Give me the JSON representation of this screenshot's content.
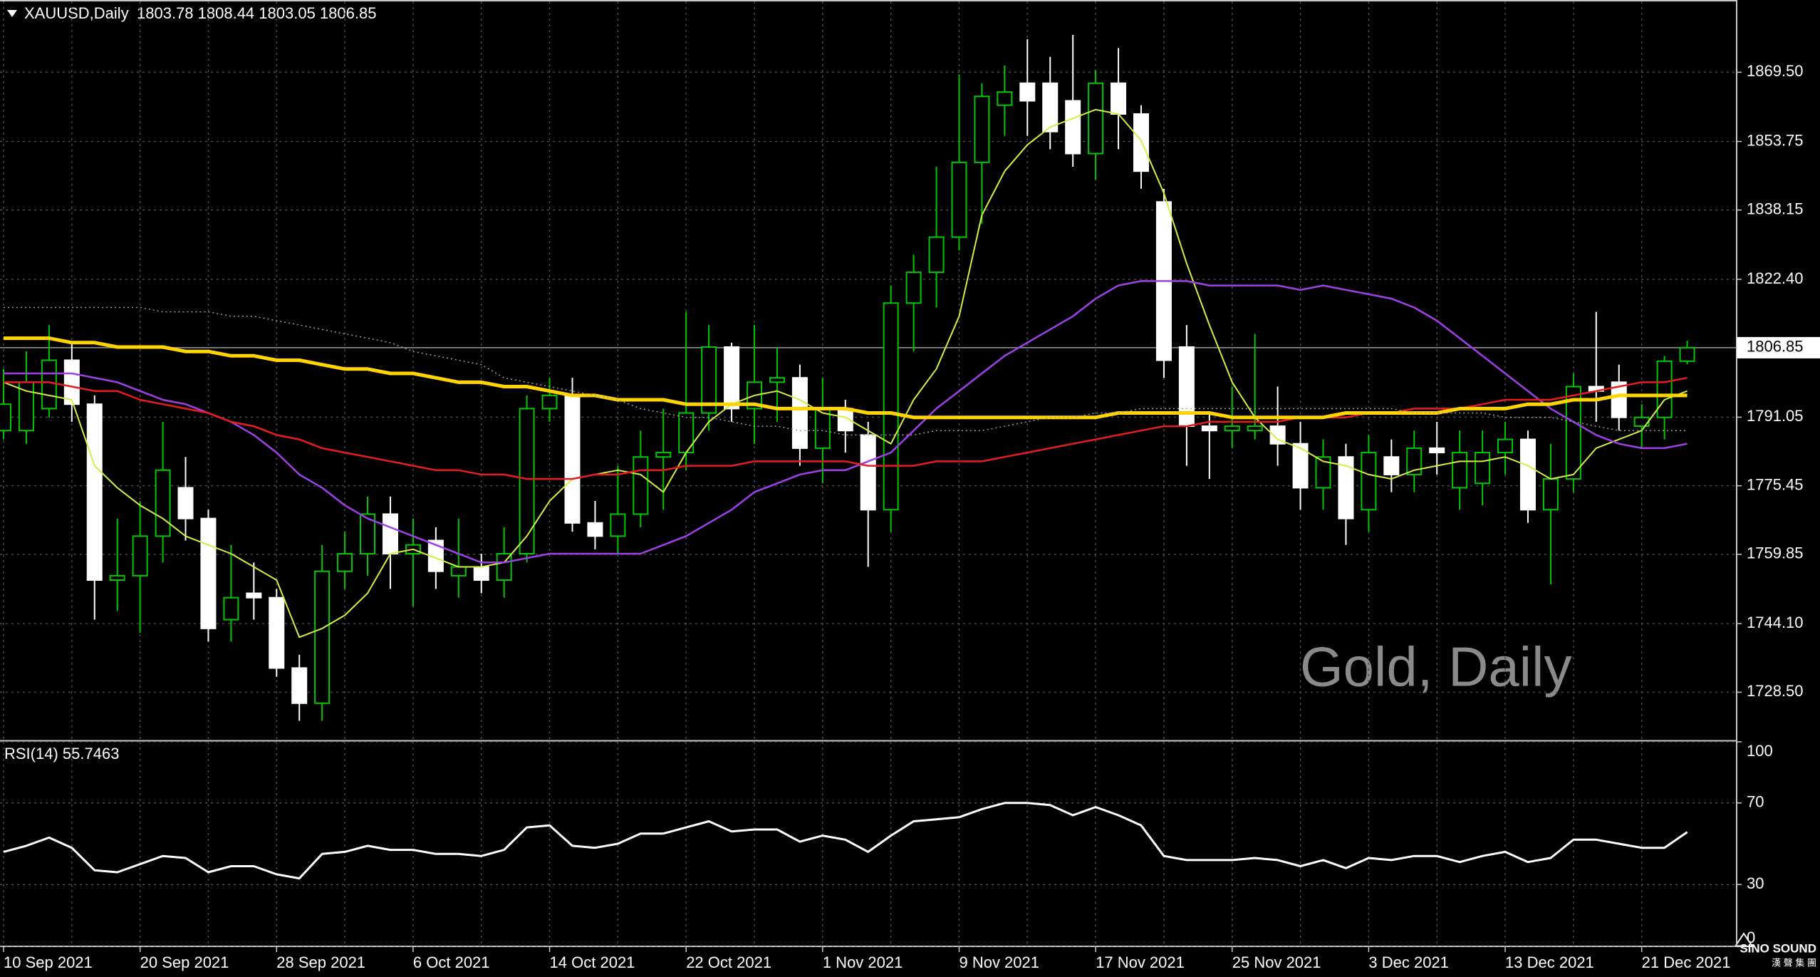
{
  "chart_data": [
    {
      "type": "candlestick",
      "title": "XAUUSD,Daily",
      "subtitle": "1803.78 1808.44 1803.05 1806.85",
      "watermark": "Gold, Daily",
      "categories": [
        "10 Sep 2021",
        null,
        null,
        null,
        null,
        null,
        "20 Sep 2021",
        null,
        null,
        null,
        null,
        null,
        "28 Sep 2021",
        null,
        null,
        null,
        null,
        null,
        "6 Oct 2021",
        null,
        null,
        null,
        null,
        null,
        "14 Oct 2021",
        null,
        null,
        null,
        null,
        null,
        "22 Oct 2021",
        null,
        null,
        null,
        null,
        null,
        "1 Nov 2021",
        null,
        null,
        null,
        null,
        null,
        "9 Nov 2021",
        null,
        null,
        null,
        null,
        null,
        "17 Nov 2021",
        null,
        null,
        null,
        null,
        null,
        "25 Nov 2021",
        null,
        null,
        null,
        null,
        null,
        "3 Dec 2021",
        null,
        null,
        null,
        null,
        null,
        "13 Dec 2021",
        null,
        null,
        null,
        null,
        null,
        "21 Dec 2021",
        null,
        null
      ],
      "open": [
        1788,
        1788,
        1793,
        1804,
        1794,
        1754,
        1755,
        1764,
        1775,
        1768,
        1745,
        1751,
        1750,
        1734,
        1726,
        1756,
        1760,
        1769,
        1760,
        1763,
        1755,
        1757,
        1754,
        1760,
        1793,
        1796,
        1767,
        1764,
        1769,
        1782,
        1783,
        1792,
        1807,
        1793,
        1799,
        1800,
        1784,
        1793,
        1787,
        1770,
        1817,
        1824,
        1832,
        1849,
        1862,
        1867,
        1867,
        1863,
        1851,
        1867,
        1860,
        1840,
        1807,
        1789,
        1788,
        1788,
        1789,
        1785,
        1775,
        1782,
        1770,
        1782,
        1778,
        1784,
        1775,
        1776,
        1783,
        1786,
        1770,
        1777,
        1798,
        1799,
        1789,
        1791,
        1803.78
      ],
      "high": [
        1802,
        1806,
        1812,
        1808,
        1796,
        1768,
        1772,
        1790,
        1782,
        1770,
        1762,
        1758,
        1752,
        1737,
        1762,
        1765,
        1773,
        1773,
        1768,
        1766,
        1768,
        1760,
        1766,
        1796,
        1800,
        1800,
        1772,
        1780,
        1788,
        1793,
        1815,
        1812,
        1808,
        1812,
        1807,
        1803,
        1800,
        1795,
        1790,
        1821,
        1828,
        1848,
        1869,
        1867,
        1871,
        1877,
        1873,
        1878,
        1870,
        1875,
        1862,
        1843,
        1812,
        1792,
        1798,
        1810,
        1798,
        1790,
        1786,
        1785,
        1787,
        1786,
        1788,
        1790,
        1788,
        1788,
        1790,
        1788,
        1785,
        1801,
        1815,
        1803,
        1794,
        1805,
        1808.44
      ],
      "low": [
        1786,
        1785,
        1791,
        1790,
        1745,
        1747,
        1742,
        1758,
        1763,
        1740,
        1740,
        1745,
        1732,
        1722,
        1722,
        1752,
        1755,
        1752,
        1748,
        1752,
        1750,
        1751,
        1750,
        1758,
        1790,
        1765,
        1761,
        1760,
        1766,
        1770,
        1779,
        1788,
        1790,
        1785,
        1790,
        1780,
        1776,
        1783,
        1757,
        1765,
        1806,
        1816,
        1829,
        1835,
        1855,
        1855,
        1852,
        1848,
        1845,
        1852,
        1843,
        1800,
        1780,
        1777,
        1784,
        1786,
        1780,
        1770,
        1770,
        1762,
        1765,
        1774,
        1774,
        1778,
        1770,
        1771,
        1778,
        1767,
        1753,
        1774,
        1790,
        1788,
        1784,
        1786,
        1803.05
      ],
      "close": [
        1794,
        1799,
        1804,
        1794,
        1754,
        1755,
        1764,
        1779,
        1768,
        1743,
        1750,
        1750,
        1734,
        1726,
        1756,
        1760,
        1769,
        1760,
        1762,
        1756,
        1757,
        1754,
        1760,
        1793,
        1796,
        1767,
        1764,
        1769,
        1782,
        1783,
        1792,
        1807,
        1793,
        1799,
        1800,
        1784,
        1793,
        1788,
        1770,
        1817,
        1824,
        1832,
        1849,
        1864,
        1865,
        1863,
        1856,
        1851,
        1867,
        1860,
        1847,
        1804,
        1789,
        1788,
        1789,
        1789,
        1785,
        1775,
        1782,
        1768,
        1783,
        1778,
        1784,
        1783,
        1783,
        1783,
        1786,
        1770,
        1777,
        1798,
        1797,
        1791,
        1791,
        1803.78,
        1806.85
      ],
      "up_color": "#00c800",
      "down_color": "#ffffff",
      "overlays": [
        {
          "color": "#d4ee44",
          "values": [
            1799,
            1797,
            1796,
            1795,
            1780,
            1775,
            1771,
            1768,
            1764,
            1762,
            1760,
            1757,
            1754,
            1741,
            1743,
            1746,
            1751,
            1760,
            1761,
            1759,
            1757,
            1757,
            1758,
            1764,
            1772,
            1777,
            1778,
            1779,
            1778,
            1774,
            1783,
            1790,
            1794,
            1796,
            1797,
            1795,
            1792,
            1791,
            1788,
            1785,
            1795,
            1802,
            1814,
            1837,
            1847,
            1853,
            1857,
            1859,
            1861,
            1860,
            1854,
            1842,
            1826,
            1812,
            1799,
            1791,
            1786,
            1784,
            1781,
            1780,
            1778,
            1777,
            1779,
            1780,
            1781,
            1781,
            1782,
            1780,
            1777,
            1778,
            1784,
            1786,
            1788,
            1795,
            1797
          ]
        },
        {
          "color": "#a040e8",
          "values": [
            1801,
            1801,
            1801,
            1801,
            1800,
            1799,
            1797,
            1795,
            1794,
            1792,
            1790,
            1787,
            1783,
            1778,
            1775,
            1771,
            1768,
            1766,
            1764,
            1762,
            1760,
            1758,
            1758,
            1759,
            1760,
            1760,
            1760,
            1760,
            1760,
            1762,
            1764,
            1767,
            1770,
            1774,
            1776,
            1778,
            1779,
            1779,
            1781,
            1783,
            1788,
            1793,
            1797,
            1801,
            1805,
            1808,
            1811,
            1814,
            1818,
            1821,
            1822,
            1822,
            1822,
            1821,
            1821,
            1821,
            1821,
            1820,
            1821,
            1820,
            1819,
            1818,
            1816,
            1813,
            1809,
            1805,
            1801,
            1797,
            1793,
            1790,
            1787,
            1785,
            1784,
            1784,
            1785
          ]
        },
        {
          "color": "#e81c1c",
          "values": [
            1799,
            1799,
            1799,
            1798,
            1797,
            1797,
            1795,
            1794,
            1793,
            1792,
            1790,
            1789,
            1787,
            1786,
            1784,
            1783,
            1782,
            1781,
            1780,
            1779,
            1779,
            1778,
            1778,
            1777,
            1777,
            1777,
            1778,
            1778,
            1779,
            1779,
            1780,
            1780,
            1780,
            1781,
            1781,
            1781,
            1781,
            1781,
            1780,
            1780,
            1780,
            1781,
            1781,
            1781,
            1782,
            1783,
            1784,
            1785,
            1786,
            1787,
            1788,
            1789,
            1789,
            1790,
            1790,
            1790,
            1790,
            1791,
            1791,
            1791,
            1792,
            1792,
            1793,
            1793,
            1793,
            1794,
            1795,
            1795,
            1795,
            1796,
            1797,
            1798,
            1799,
            1799,
            1800
          ]
        },
        {
          "color": "#ffd400",
          "values": [
            1809,
            1809,
            1809,
            1808,
            1808,
            1807,
            1807,
            1807,
            1806,
            1806,
            1805,
            1805,
            1804,
            1804,
            1803,
            1802,
            1802,
            1801,
            1801,
            1800,
            1799,
            1799,
            1798,
            1798,
            1797,
            1796,
            1796,
            1795,
            1795,
            1795,
            1794,
            1794,
            1794,
            1794,
            1793,
            1793,
            1793,
            1793,
            1792,
            1792,
            1791,
            1791,
            1791,
            1791,
            1791,
            1791,
            1791,
            1791,
            1791,
            1792,
            1792,
            1792,
            1792,
            1792,
            1791,
            1791,
            1791,
            1791,
            1791,
            1792,
            1792,
            1792,
            1792,
            1792,
            1793,
            1793,
            1793,
            1794,
            1794,
            1795,
            1795,
            1796,
            1796,
            1796,
            1796
          ]
        },
        {
          "color": "#a0a0a0",
          "style": "dotted",
          "values": [
            1816,
            1816,
            1816,
            1816,
            1816,
            1816,
            1816,
            1815,
            1815,
            1815,
            1814,
            1814,
            1813,
            1812,
            1811,
            1810,
            1809,
            1808,
            1806,
            1805,
            1804,
            1803,
            1800,
            1799,
            1798,
            1797,
            1796,
            1795,
            1793,
            1792,
            1791,
            1791,
            1790,
            1789,
            1789,
            1788,
            1788,
            1787,
            1787,
            1787,
            1787,
            1788,
            1788,
            1788,
            1789,
            1790,
            1791,
            1791,
            1792,
            1792,
            1793,
            1793,
            1793,
            1793,
            1793,
            1793,
            1793,
            1793,
            1793,
            1793,
            1793,
            1793,
            1792,
            1792,
            1792,
            1792,
            1791,
            1791,
            1791,
            1790,
            1789,
            1788,
            1788,
            1788,
            1788
          ]
        }
      ],
      "ylim": [
        1717.7,
        1885.6
      ],
      "yticks": [
        {
          "value": 1728.5,
          "label": "1728.50"
        },
        {
          "value": 1744.1,
          "label": "1744.10"
        },
        {
          "value": 1759.85,
          "label": "1759.85"
        },
        {
          "value": 1775.45,
          "label": "1775.45"
        },
        {
          "value": 1791.05,
          "label": "1791.05"
        },
        {
          "value": 1822.4,
          "label": "1822.40"
        },
        {
          "value": 1838.15,
          "label": "1838.15"
        },
        {
          "value": 1853.75,
          "label": "1853.75"
        },
        {
          "value": 1869.5,
          "label": "1869.50"
        }
      ],
      "last_price": {
        "value": 1806.85,
        "label": "1806.85"
      },
      "grid": true
    },
    {
      "type": "line",
      "title": "RSI(14) 55.7463",
      "color": "#ffffff",
      "values": [
        46,
        49,
        53,
        48,
        37,
        36,
        40,
        44,
        43,
        36,
        39,
        39,
        35,
        33,
        45,
        46,
        49,
        47,
        47,
        45,
        45,
        44,
        47,
        58,
        59,
        49,
        48,
        50,
        55,
        55,
        58,
        61,
        56,
        57,
        57,
        51,
        54,
        52,
        46,
        54,
        61,
        62,
        63,
        67,
        70,
        70,
        69,
        64,
        68,
        64,
        59,
        44,
        42,
        42,
        42,
        43,
        42,
        39,
        42,
        38,
        43,
        42,
        44,
        44,
        41,
        44,
        46,
        41,
        43,
        52,
        52,
        50,
        48,
        48,
        55.7463
      ],
      "ylim": [
        0,
        100
      ],
      "yticks": [
        0,
        30,
        70,
        100
      ],
      "grid": true
    }
  ],
  "logo": {
    "text": "SINO SOUND",
    "subtext": "漢 聲 集 團"
  }
}
